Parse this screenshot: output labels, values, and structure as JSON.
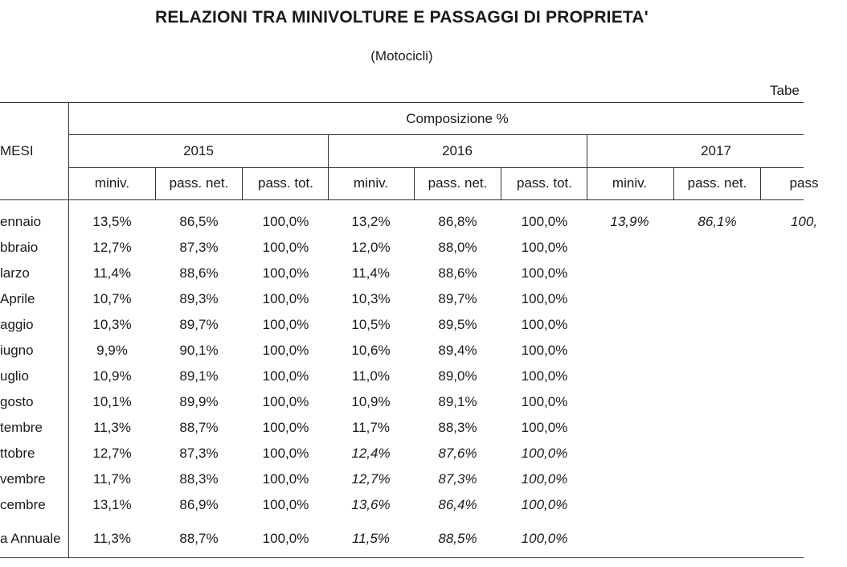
{
  "title": "RELAZIONI TRA MINIVOLTURE E PASSAGGI DI PROPRIETA'",
  "subtitle": "(Motocicli)",
  "table_ref": "Tabe",
  "header": {
    "mesi": "MESI",
    "composizione": "Composizione %",
    "years": [
      "2015",
      "2016",
      "2017"
    ],
    "columns": [
      "miniv.",
      "pass. net.",
      "pass. tot.",
      "miniv.",
      "pass. net.",
      "pass. tot.",
      "miniv.",
      "pass. net.",
      "pass"
    ]
  },
  "rows": [
    {
      "month": "ennaio",
      "v": [
        "13,5%",
        "86,5%",
        "100,0%",
        "13,2%",
        "86,8%",
        "100,0%",
        "13,9%",
        "86,1%",
        "100,"
      ]
    },
    {
      "month": "bbraio",
      "v": [
        "12,7%",
        "87,3%",
        "100,0%",
        "12,0%",
        "88,0%",
        "100,0%",
        "",
        "",
        ""
      ]
    },
    {
      "month": "larzo",
      "v": [
        "11,4%",
        "88,6%",
        "100,0%",
        "11,4%",
        "88,6%",
        "100,0%",
        "",
        "",
        ""
      ]
    },
    {
      "month": "Aprile",
      "v": [
        "10,7%",
        "89,3%",
        "100,0%",
        "10,3%",
        "89,7%",
        "100,0%",
        "",
        "",
        ""
      ]
    },
    {
      "month": "aggio",
      "v": [
        "10,3%",
        "89,7%",
        "100,0%",
        "10,5%",
        "89,5%",
        "100,0%",
        "",
        "",
        ""
      ]
    },
    {
      "month": "iugno",
      "v": [
        "9,9%",
        "90,1%",
        "100,0%",
        "10,6%",
        "89,4%",
        "100,0%",
        "",
        "",
        ""
      ]
    },
    {
      "month": "uglio",
      "v": [
        "10,9%",
        "89,1%",
        "100,0%",
        "11,0%",
        "89,0%",
        "100,0%",
        "",
        "",
        ""
      ]
    },
    {
      "month": "gosto",
      "v": [
        "10,1%",
        "89,9%",
        "100,0%",
        "10,9%",
        "89,1%",
        "100,0%",
        "",
        "",
        ""
      ]
    },
    {
      "month": "tembre",
      "v": [
        "11,3%",
        "88,7%",
        "100,0%",
        "11,7%",
        "88,3%",
        "100,0%",
        "",
        "",
        ""
      ]
    },
    {
      "month": "ttobre",
      "v": [
        "12,7%",
        "87,3%",
        "100,0%",
        "12,4%",
        "87,6%",
        "100,0%",
        "",
        "",
        ""
      ]
    },
    {
      "month": "vembre",
      "v": [
        "11,7%",
        "88,3%",
        "100,0%",
        "12,7%",
        "87,3%",
        "100,0%",
        "",
        "",
        ""
      ]
    },
    {
      "month": "cembre",
      "v": [
        "13,1%",
        "86,9%",
        "100,0%",
        "13,6%",
        "86,4%",
        "100,0%",
        "",
        "",
        ""
      ]
    },
    {
      "month": "a Annuale",
      "v": [
        "11,3%",
        "88,7%",
        "100,0%",
        "11,5%",
        "88,5%",
        "100,0%",
        "",
        "",
        ""
      ]
    }
  ]
}
